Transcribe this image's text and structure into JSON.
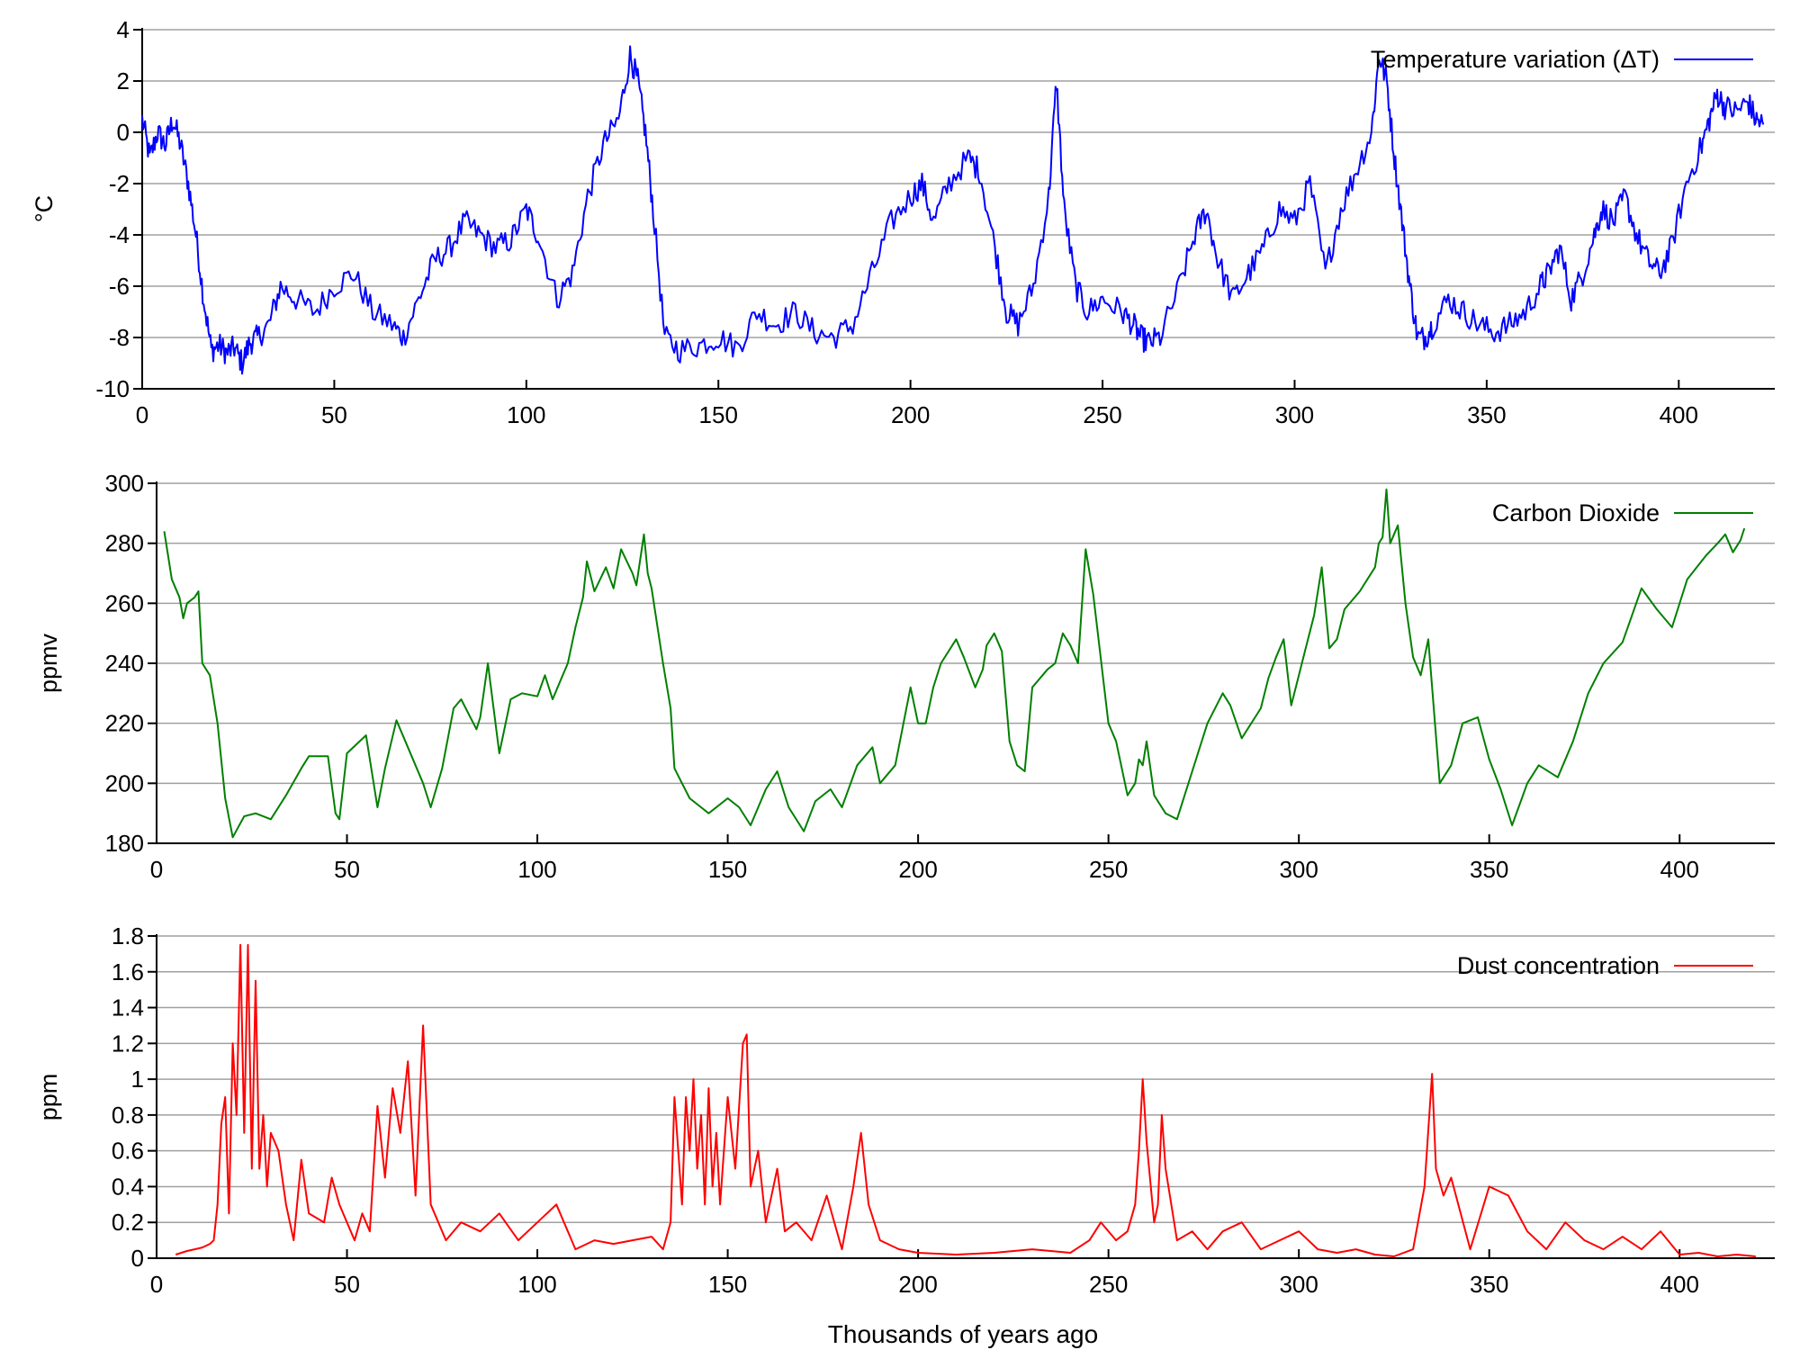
{
  "figure": {
    "xlabel": "Thousands of years ago"
  },
  "chart_data": [
    {
      "type": "line",
      "ylabel": "°C",
      "xlim": [
        0,
        425
      ],
      "ylim": [
        -10,
        4
      ],
      "xticks": [
        0,
        50,
        100,
        150,
        200,
        250,
        300,
        350,
        400
      ],
      "yticks": [
        -10,
        -8,
        -6,
        -4,
        -2,
        0,
        2,
        4
      ],
      "grid": true,
      "legend_position": "top-right",
      "series": [
        {
          "name": "Temperature variation (ΔT)",
          "color": "#0000ff",
          "noise": 0.5,
          "x": [
            0,
            2,
            4,
            6,
            8,
            10,
            12,
            14,
            16,
            18,
            20,
            22,
            24,
            26,
            28,
            30,
            33,
            36,
            40,
            45,
            50,
            55,
            60,
            65,
            68,
            72,
            76,
            80,
            84,
            88,
            92,
            96,
            100,
            103,
            108,
            112,
            116,
            120,
            124,
            127,
            129,
            131,
            133,
            136,
            140,
            145,
            150,
            155,
            160,
            165,
            170,
            175,
            180,
            185,
            190,
            195,
            200,
            203,
            206,
            210,
            215,
            218,
            222,
            225,
            228,
            232,
            236,
            238,
            240,
            243,
            246,
            250,
            255,
            258,
            260,
            262,
            265,
            270,
            274,
            277,
            280,
            284,
            288,
            292,
            296,
            300,
            304,
            308,
            312,
            316,
            320,
            322,
            324,
            326,
            328,
            330,
            332,
            334,
            336,
            340,
            344,
            348,
            352,
            356,
            360,
            364,
            366,
            369,
            372,
            375,
            378,
            380,
            383,
            386,
            389,
            392,
            395,
            398,
            402,
            406,
            408,
            410,
            412,
            415,
            418,
            420,
            422
          ],
          "y": [
            0.5,
            -1.0,
            0.0,
            -0.5,
            0.5,
            -0.5,
            -2.0,
            -4.0,
            -6.5,
            -8.5,
            -8.3,
            -8.6,
            -8.4,
            -9.0,
            -8.2,
            -8.0,
            -7.5,
            -6.0,
            -6.5,
            -7.0,
            -6.0,
            -5.5,
            -7.0,
            -7.5,
            -8.0,
            -6.5,
            -5.0,
            -4.5,
            -3.5,
            -4.0,
            -4.5,
            -4.2,
            -3.0,
            -4.0,
            -6.5,
            -5.5,
            -2.5,
            -0.5,
            0.5,
            3.0,
            2.0,
            0.0,
            -3.0,
            -8.0,
            -8.5,
            -8.3,
            -8.0,
            -8.4,
            -7.0,
            -7.5,
            -7.0,
            -7.8,
            -8.0,
            -7.5,
            -5.5,
            -3.5,
            -2.5,
            -2.0,
            -3.5,
            -2.0,
            -1.0,
            -1.5,
            -4.5,
            -7.0,
            -7.5,
            -6.0,
            -2.5,
            2.0,
            -3.0,
            -6.0,
            -7.0,
            -6.5,
            -7.0,
            -7.5,
            -8.0,
            -8.2,
            -8.0,
            -6.0,
            -4.0,
            -3.0,
            -5.0,
            -6.5,
            -5.5,
            -4.5,
            -3.0,
            -3.5,
            -2.0,
            -5.5,
            -3.0,
            -1.5,
            0.0,
            3.0,
            2.0,
            -1.0,
            -3.5,
            -6.0,
            -8.0,
            -8.0,
            -7.5,
            -6.5,
            -7.0,
            -7.5,
            -7.8,
            -7.5,
            -7.0,
            -6.0,
            -5.5,
            -4.5,
            -6.5,
            -5.5,
            -4.0,
            -3.0,
            -3.5,
            -2.5,
            -4.0,
            -5.0,
            -5.5,
            -4.5,
            -2.0,
            -0.5,
            0.5,
            1.5,
            1.0,
            0.8,
            1.2,
            0.5,
            0.3
          ]
        }
      ]
    },
    {
      "type": "line",
      "ylabel": "ppmv",
      "xlim": [
        0,
        425
      ],
      "ylim": [
        180,
        300
      ],
      "xticks": [
        0,
        50,
        100,
        150,
        200,
        250,
        300,
        350,
        400
      ],
      "yticks": [
        180,
        200,
        220,
        240,
        260,
        280,
        300
      ],
      "grid": true,
      "legend_position": "top-right",
      "series": [
        {
          "name": "Carbon Dioxide",
          "color": "#008000",
          "noise": 0,
          "x": [
            2,
            4,
            6,
            7,
            8,
            10,
            11,
            12,
            14,
            16,
            18,
            20,
            23,
            26,
            30,
            34,
            38,
            40,
            45,
            47,
            48,
            50,
            55,
            58,
            60,
            63,
            66,
            70,
            72,
            75,
            78,
            80,
            84,
            85,
            87,
            88,
            90,
            93,
            96,
            100,
            102,
            104,
            106,
            108,
            110,
            112,
            113,
            115,
            118,
            120,
            122,
            125,
            126,
            128,
            129,
            130,
            133,
            135,
            136,
            138,
            140,
            143,
            145,
            150,
            153,
            156,
            160,
            163,
            166,
            170,
            173,
            177,
            180,
            184,
            188,
            190,
            194,
            198,
            200,
            202,
            204,
            206,
            210,
            212,
            215,
            217,
            218,
            220,
            222,
            224,
            226,
            228,
            230,
            234,
            236,
            238,
            240,
            242,
            244,
            246,
            250,
            252,
            255,
            257,
            258,
            259,
            260,
            262,
            265,
            268,
            272,
            276,
            280,
            282,
            285,
            290,
            292,
            294,
            296,
            298,
            300,
            302,
            304,
            306,
            308,
            310,
            312,
            316,
            318,
            320,
            321,
            322,
            323,
            324,
            326,
            328,
            330,
            332,
            334,
            337,
            340,
            343,
            347,
            350,
            353,
            356,
            360,
            363,
            368,
            372,
            376,
            380,
            385,
            390,
            394,
            398,
            402,
            407,
            410,
            412,
            414
          ],
          "y": [
            284,
            268,
            262,
            255,
            260,
            262,
            264,
            240,
            236,
            220,
            195,
            182,
            189,
            190,
            188,
            196,
            205,
            209,
            209,
            190,
            188,
            210,
            216,
            192,
            205,
            221,
            212,
            200,
            192,
            205,
            225,
            228,
            218,
            222,
            240,
            230,
            210,
            228,
            230,
            229,
            236,
            228,
            234,
            240,
            252,
            262,
            274,
            264,
            272,
            265,
            278,
            270,
            266,
            283,
            270,
            265,
            240,
            225,
            205,
            200,
            195,
            192,
            190,
            195,
            192,
            186,
            198,
            204,
            192,
            184,
            194,
            198,
            192,
            206,
            212,
            200,
            206,
            232,
            220,
            220,
            232,
            240,
            248,
            242,
            232,
            238,
            246,
            250,
            244,
            214,
            206,
            204,
            232,
            238,
            240,
            250,
            246,
            240,
            278,
            263,
            220,
            214,
            196,
            200,
            208,
            206,
            214,
            196,
            190,
            188,
            204,
            220,
            230,
            226,
            215,
            225,
            235,
            242,
            248,
            226,
            236,
            246,
            256,
            272,
            245,
            248,
            258,
            264,
            268,
            272,
            280,
            282,
            298,
            280,
            286,
            260,
            242,
            236,
            248,
            200,
            206,
            220,
            222,
            208,
            198,
            186,
            200,
            206,
            202,
            214,
            230,
            240,
            247,
            265,
            258,
            252,
            268,
            276,
            280,
            283,
            277
          ],
          "x_tail": [
            414,
            416,
            417
          ],
          "y_tail": [
            277,
            281,
            285
          ]
        }
      ]
    },
    {
      "type": "line",
      "ylabel": "ppm",
      "xlim": [
        0,
        425
      ],
      "ylim": [
        0,
        1.8
      ],
      "xticks": [
        0,
        50,
        100,
        150,
        200,
        250,
        300,
        350,
        400
      ],
      "yticks": [
        0,
        0.2,
        0.4,
        0.6,
        0.8,
        1,
        1.2,
        1.4,
        1.6,
        1.8
      ],
      "grid": true,
      "legend_position": "top-right",
      "series": [
        {
          "name": "Dust concentration",
          "color": "#ff0000",
          "noise": 0,
          "x": [
            5,
            8,
            10,
            12,
            14,
            15,
            16,
            17,
            18,
            19,
            20,
            21,
            22,
            23,
            24,
            25,
            26,
            27,
            28,
            29,
            30,
            32,
            34,
            36,
            38,
            40,
            44,
            46,
            48,
            50,
            52,
            54,
            56,
            58,
            60,
            62,
            64,
            66,
            68,
            70,
            72,
            76,
            80,
            85,
            90,
            95,
            100,
            105,
            110,
            115,
            120,
            125,
            130,
            133,
            135,
            136,
            137,
            138,
            139,
            140,
            141,
            142,
            143,
            144,
            145,
            146,
            147,
            148,
            150,
            152,
            154,
            155,
            156,
            158,
            160,
            163,
            165,
            168,
            172,
            176,
            180,
            183,
            185,
            187,
            190,
            195,
            200,
            210,
            220,
            230,
            240,
            245,
            248,
            252,
            255,
            257,
            258,
            259,
            260,
            262,
            263,
            264,
            265,
            268,
            272,
            276,
            280,
            285,
            290,
            295,
            300,
            305,
            310,
            315,
            320,
            325,
            330,
            333,
            335,
            336,
            338,
            340,
            345,
            350,
            355,
            360,
            365,
            370,
            375,
            380,
            385,
            390,
            395,
            400,
            405,
            410,
            415,
            420
          ],
          "y": [
            0.02,
            0.04,
            0.05,
            0.06,
            0.08,
            0.1,
            0.3,
            0.75,
            0.9,
            0.25,
            1.2,
            0.8,
            1.75,
            0.7,
            1.75,
            0.5,
            1.55,
            0.5,
            0.8,
            0.4,
            0.7,
            0.6,
            0.3,
            0.1,
            0.55,
            0.25,
            0.2,
            0.45,
            0.3,
            0.2,
            0.1,
            0.25,
            0.15,
            0.85,
            0.45,
            0.95,
            0.7,
            1.1,
            0.35,
            1.3,
            0.3,
            0.1,
            0.2,
            0.15,
            0.25,
            0.1,
            0.2,
            0.3,
            0.05,
            0.1,
            0.08,
            0.1,
            0.12,
            0.05,
            0.2,
            0.9,
            0.6,
            0.3,
            0.9,
            0.6,
            1.0,
            0.5,
            0.8,
            0.3,
            0.95,
            0.4,
            0.7,
            0.3,
            0.9,
            0.5,
            1.2,
            1.25,
            0.4,
            0.6,
            0.2,
            0.5,
            0.15,
            0.2,
            0.1,
            0.35,
            0.05,
            0.4,
            0.7,
            0.3,
            0.1,
            0.05,
            0.03,
            0.02,
            0.03,
            0.05,
            0.03,
            0.1,
            0.2,
            0.1,
            0.15,
            0.3,
            0.6,
            1.0,
            0.65,
            0.2,
            0.3,
            0.8,
            0.5,
            0.1,
            0.15,
            0.05,
            0.15,
            0.2,
            0.05,
            0.1,
            0.15,
            0.05,
            0.03,
            0.05,
            0.02,
            0.01,
            0.05,
            0.4,
            1.03,
            0.5,
            0.35,
            0.45,
            0.05,
            0.4,
            0.35,
            0.15,
            0.05,
            0.2,
            0.1,
            0.05,
            0.12,
            0.05,
            0.15,
            0.02,
            0.03,
            0.01,
            0.02,
            0.01
          ]
        }
      ]
    }
  ]
}
